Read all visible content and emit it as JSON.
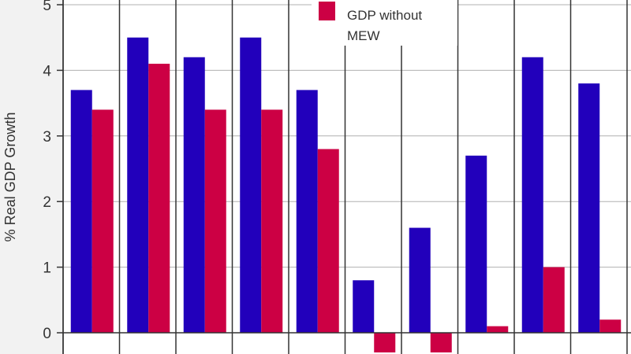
{
  "chart_data": {
    "type": "bar",
    "title": "",
    "xlabel": "",
    "ylabel": "% Real GDP Growth",
    "ylim": [
      -0.3,
      5
    ],
    "yticks": [
      0,
      1,
      2,
      3,
      4,
      5
    ],
    "grid": true,
    "legend_placement": "top-center",
    "categories": [
      "",
      "",
      "",
      "",
      "",
      "",
      "",
      "",
      "",
      "",
      ""
    ],
    "series": [
      {
        "color": "#2200bb",
        "values": [
          3.7,
          4.5,
          4.2,
          4.5,
          3.7,
          0.8,
          1.6,
          2.7,
          4.2,
          3.8,
          null
        ]
      },
      {
        "name": "GDP without MEW",
        "color": "#cc0044",
        "values": [
          3.4,
          4.1,
          3.4,
          3.4,
          2.8,
          -0.3,
          -0.3,
          0.1,
          1.0,
          0.2,
          null
        ]
      }
    ]
  },
  "legend": {
    "items": [
      {
        "label_line1": "GDP without",
        "label_line2": "MEW",
        "color": "#cc0044"
      }
    ]
  }
}
